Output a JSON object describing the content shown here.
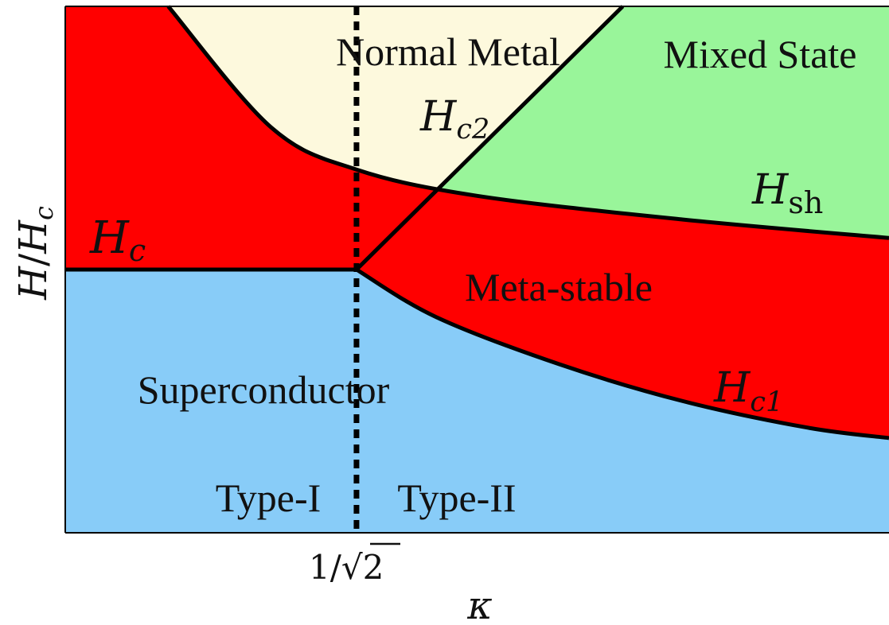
{
  "chart_data": {
    "type": "area",
    "title": "",
    "xlabel": "κ",
    "ylabel": "H/H_c",
    "ylabel_parts": {
      "H": "H",
      "slash": "/",
      "Hc_main": "H",
      "Hc_sub": "c"
    },
    "xlabel_symbol": "κ",
    "x_ticks": [
      {
        "value": 0.7071,
        "label": "1/√2"
      }
    ],
    "x_tick_parts": {
      "num": "1/",
      "radical": "√",
      "radicand": "2"
    },
    "xlim": [
      0,
      2.0
    ],
    "ylim": [
      0,
      2.0
    ],
    "grid": false,
    "boundary_x": 0.7071,
    "regions": [
      {
        "name": "Normal Metal",
        "color": "#fdf9dd"
      },
      {
        "name": "Mixed State",
        "color": "#99f59a"
      },
      {
        "name": "Meta-stable",
        "color": "#ff0000"
      },
      {
        "name": "Superconductor",
        "color": "#88ccf8"
      }
    ],
    "region_labels": {
      "normal": "Normal Metal",
      "mixed": "Mixed State",
      "metastable": "Meta-stable",
      "superconductor": "Superconductor",
      "type1": "Type-I",
      "type2": "Type-II"
    },
    "curve_labels": {
      "Hc": {
        "main": "H",
        "sub": "c"
      },
      "Hc2": {
        "main": "H",
        "sub": "c2"
      },
      "Hsh": {
        "main": "H",
        "sub": "sh"
      },
      "Hc1": {
        "main": "H",
        "sub": "c1"
      }
    },
    "curves": {
      "Hc": {
        "x": [
          0,
          0.7071
        ],
        "y": [
          1.0,
          1.0
        ]
      },
      "Hc2": {
        "x": [
          0.7071,
          2.0
        ],
        "y": [
          1.0,
          3.0
        ]
      },
      "Hsh": {
        "x": [
          0.25,
          0.5,
          0.7071,
          1.0,
          1.5,
          2.0
        ],
        "y": [
          2.0,
          1.54,
          1.38,
          1.28,
          1.19,
          1.12
        ]
      },
      "Hc1": {
        "x": [
          0.7071,
          0.9,
          1.2,
          1.5,
          1.8,
          2.0
        ],
        "y": [
          1.0,
          0.82,
          0.64,
          0.5,
          0.4,
          0.36
        ]
      }
    }
  }
}
